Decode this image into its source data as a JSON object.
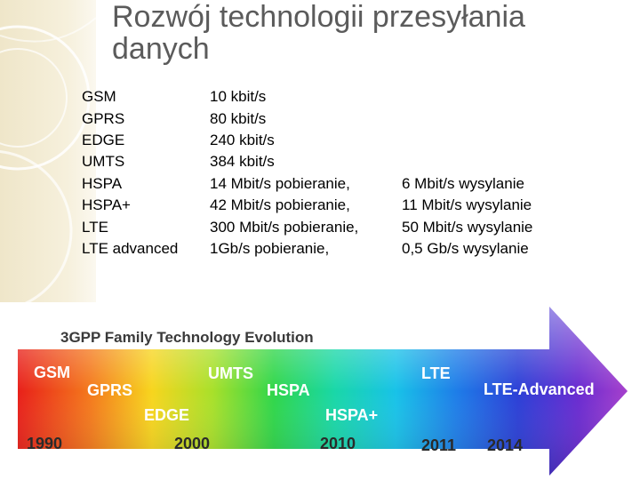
{
  "slide": {
    "title_lines": [
      "Rozwój technologii przesyłania",
      "danych"
    ]
  },
  "technologies": [
    {
      "name": "GSM",
      "download": "10 kbit/s",
      "upload": ""
    },
    {
      "name": "GPRS",
      "download": "80 kbit/s",
      "upload": ""
    },
    {
      "name": "EDGE",
      "download": "240 kbit/s",
      "upload": ""
    },
    {
      "name": "UMTS",
      "download": "384 kbit/s",
      "upload": ""
    },
    {
      "name": "HSPA",
      "download": "14 Mbit/s pobieranie,",
      "upload": "6 Mbit/s wysylanie"
    },
    {
      "name": "HSPA+",
      "download": "42 Mbit/s pobieranie,",
      "upload": "11 Mbit/s wysylanie"
    },
    {
      "name": "LTE",
      "download": "300 Mbit/s pobieranie,",
      "upload": "50 Mbit/s wysylanie"
    },
    {
      "name": "LTE advanced",
      "download": "1Gb/s pobieranie,",
      "upload": "0,5 Gb/s wysylanie"
    }
  ],
  "evolution_graphic": {
    "title": "3GPP Family Technology Evolution",
    "technologies": [
      "GSM",
      "GPRS",
      "EDGE",
      "UMTS",
      "HSPA",
      "HSPA+",
      "LTE",
      "LTE-Advanced"
    ],
    "years": [
      "1990",
      "2000",
      "2010",
      "2011",
      "2014"
    ]
  }
}
